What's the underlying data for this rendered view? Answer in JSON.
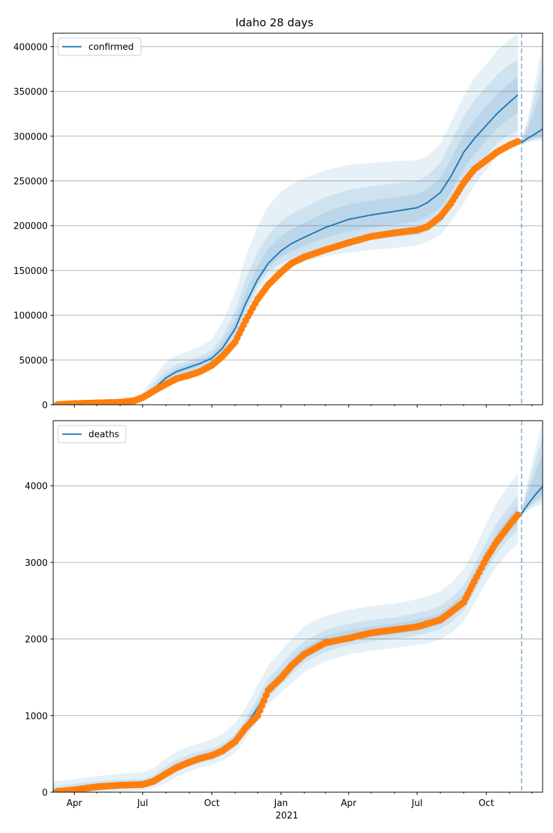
{
  "figure_title": "Idaho 28 days",
  "colors": {
    "model": "#1f77b4",
    "observed": "#ff7f0e",
    "grid": "#b0b0b0",
    "cutoff": "#1f77b4"
  },
  "x_axis": {
    "ticks": [
      {
        "date": "2020-04-01",
        "label": "Apr"
      },
      {
        "date": "2020-07-01",
        "label": "Jul"
      },
      {
        "date": "2020-10-01",
        "label": "Oct"
      },
      {
        "date": "2021-01-01",
        "label": "Jan"
      },
      {
        "date": "2021-04-01",
        "label": "Apr"
      },
      {
        "date": "2021-07-01",
        "label": "Jul"
      },
      {
        "date": "2021-10-01",
        "label": "Oct"
      }
    ],
    "year_label": "2021"
  },
  "chart_data": [
    {
      "type": "line",
      "legend": "confirmed",
      "legend_position": "upper-left",
      "grid": "horizontal",
      "xlim": [
        "2020-03-04",
        "2021-12-15"
      ],
      "ylim": [
        0,
        415000
      ],
      "yticks": [
        0,
        50000,
        100000,
        150000,
        200000,
        250000,
        300000,
        350000,
        400000
      ],
      "cutoff_date": "2021-11-17",
      "model": {
        "x": [
          "2020-03-04",
          "2020-04-01",
          "2020-05-01",
          "2020-06-01",
          "2020-06-20",
          "2020-07-01",
          "2020-07-15",
          "2020-08-01",
          "2020-08-15",
          "2020-09-01",
          "2020-09-15",
          "2020-10-01",
          "2020-10-15",
          "2020-11-01",
          "2020-11-15",
          "2020-12-01",
          "2020-12-15",
          "2021-01-01",
          "2021-01-15",
          "2021-02-01",
          "2021-03-01",
          "2021-04-01",
          "2021-05-01",
          "2021-06-01",
          "2021-07-01",
          "2021-07-15",
          "2021-08-01",
          "2021-08-15",
          "2021-09-01",
          "2021-09-15",
          "2021-10-01",
          "2021-10-15",
          "2021-11-01",
          "2021-11-12"
        ],
        "y": [
          500,
          1200,
          2000,
          2800,
          4500,
          8000,
          17000,
          30000,
          37000,
          42000,
          46000,
          52000,
          63000,
          85000,
          113000,
          140000,
          158000,
          172000,
          180000,
          187000,
          198000,
          207000,
          212000,
          216000,
          220000,
          226000,
          237000,
          255000,
          282000,
          297000,
          312000,
          325000,
          338000,
          346000
        ],
        "bands": [
          {
            "lo": [
              0,
              0,
              500,
              1500,
              3000,
              6000,
              13000,
              22000,
              28000,
              32000,
              35000,
              40000,
              50000,
              68000,
              95000,
              125000,
              142000,
              150000,
              155000,
              160000,
              166000,
              170000,
              173000,
              175000,
              178000,
              182000,
              190000,
              205000,
              225000,
              245000,
              262000,
              278000,
              290000,
              296000
            ],
            "hi": [
              2500,
              4000,
              5500,
              7000,
              9000,
              13000,
              30000,
              48000,
              55000,
              60000,
              65000,
              73000,
              92000,
              125000,
              165000,
              200000,
              222000,
              238000,
              246000,
              253000,
              262000,
              268000,
              270000,
              272000,
              273000,
              278000,
              292000,
              315000,
              345000,
              365000,
              380000,
              395000,
              408000,
              414000
            ]
          },
          {
            "lo": [
              0,
              300,
              1000,
              2000,
              3500,
              7000,
              15000,
              25000,
              31000,
              36000,
              39000,
              45000,
              56000,
              76000,
              103000,
              132000,
              149000,
              158000,
              163000,
              168000,
              175000,
              180000,
              184000,
              187000,
              190000,
              194000,
              203000,
              220000,
              245000,
              262000,
              278000,
              292000,
              302000,
              306000
            ],
            "hi": [
              1500,
              2500,
              3500,
              4500,
              6500,
              10000,
              23000,
              38000,
              45000,
              49000,
              54000,
              61000,
              76000,
              105000,
              140000,
              170000,
              190000,
              205000,
              213000,
              220000,
              232000,
              240000,
              244000,
              247000,
              250000,
              256000,
              270000,
              293000,
              322000,
              340000,
              355000,
              368000,
              380000,
              386000
            ]
          },
          {
            "lo": [
              100,
              700,
              1500,
              2400,
              4000,
              7500,
              16000,
              28000,
              34000,
              39000,
              42500,
              48500,
              59500,
              80500,
              108000,
              136000,
              153500,
              165000,
              171500,
              177500,
              186500,
              193500,
              198000,
              201500,
              205000,
              210000,
              220000,
              237500,
              263500,
              279500,
              295000,
              308500,
              320000,
              326000
            ],
            "hi": [
              900,
              1700,
              2600,
              3600,
              5500,
              9000,
              19500,
              33000,
              40500,
              45500,
              50000,
              56500,
              69000,
              95000,
              126000,
              155000,
              174000,
              188000,
              196000,
              203000,
              215000,
              223500,
              228000,
              231500,
              235000,
              241000,
              253500,
              274000,
              302000,
              318000,
              333500,
              346500,
              359000,
              366000
            ]
          }
        ]
      },
      "forecast": {
        "x": [
          "2021-11-17",
          "2021-11-25",
          "2021-12-05",
          "2021-12-15"
        ],
        "y": [
          293000,
          297500,
          302500,
          308000
        ],
        "lo": [
          290000,
          293000,
          294500,
          295000
        ],
        "hi": [
          298000,
          318000,
          360000,
          405000
        ]
      },
      "observed": {
        "x": [
          "2020-03-10",
          "2020-04-01",
          "2020-05-01",
          "2020-06-01",
          "2020-06-20",
          "2020-07-01",
          "2020-07-15",
          "2020-08-01",
          "2020-08-15",
          "2020-09-01",
          "2020-09-15",
          "2020-10-01",
          "2020-10-15",
          "2020-11-01",
          "2020-11-15",
          "2020-12-01",
          "2020-12-15",
          "2021-01-01",
          "2021-01-15",
          "2021-02-01",
          "2021-03-01",
          "2021-04-01",
          "2021-05-01",
          "2021-06-01",
          "2021-07-01",
          "2021-07-15",
          "2021-08-01",
          "2021-08-15",
          "2021-09-01",
          "2021-09-15",
          "2021-10-01",
          "2021-10-15",
          "2021-11-01",
          "2021-11-12"
        ],
        "y": [
          200,
          1200,
          2000,
          2800,
          4500,
          8000,
          15000,
          23000,
          29000,
          33000,
          37000,
          44000,
          54000,
          70000,
          94000,
          118000,
          134000,
          148000,
          158000,
          165000,
          173000,
          181000,
          188000,
          192000,
          195000,
          199000,
          210000,
          225000,
          248000,
          263000,
          273000,
          282000,
          290000,
          294000
        ]
      }
    },
    {
      "type": "line",
      "legend": "deaths",
      "legend_position": "upper-left",
      "grid": "horizontal",
      "xlim": [
        "2020-03-04",
        "2021-12-15"
      ],
      "ylim": [
        0,
        4850
      ],
      "yticks": [
        0,
        1000,
        2000,
        3000,
        4000
      ],
      "cutoff_date": "2021-11-17",
      "model": {
        "x": [
          "2020-03-04",
          "2020-04-01",
          "2020-05-01",
          "2020-06-01",
          "2020-07-01",
          "2020-07-15",
          "2020-08-01",
          "2020-08-15",
          "2020-09-01",
          "2020-09-15",
          "2020-10-01",
          "2020-10-15",
          "2020-11-01",
          "2020-11-15",
          "2020-12-01",
          "2020-12-15",
          "2021-01-01",
          "2021-01-15",
          "2021-02-01",
          "2021-03-01",
          "2021-04-01",
          "2021-05-01",
          "2021-06-01",
          "2021-07-01",
          "2021-07-15",
          "2021-08-01",
          "2021-08-15",
          "2021-09-01",
          "2021-09-15",
          "2021-10-01",
          "2021-10-15",
          "2021-11-01",
          "2021-11-12"
        ],
        "y": [
          20,
          40,
          80,
          100,
          110,
          150,
          250,
          330,
          400,
          440,
          480,
          540,
          660,
          860,
          1100,
          1330,
          1500,
          1650,
          1800,
          1950,
          2030,
          2080,
          2120,
          2170,
          2200,
          2250,
          2350,
          2500,
          2750,
          3050,
          3270,
          3490,
          3600
        ],
        "bands": [
          {
            "lo": [
              0,
              0,
              0,
              10,
              20,
              50,
              120,
              200,
              270,
              320,
              360,
              410,
              510,
              700,
              930,
              1150,
              1300,
              1430,
              1570,
              1710,
              1800,
              1850,
              1880,
              1920,
              1940,
              1990,
              2080,
              2230,
              2460,
              2740,
              2950,
              3140,
              3240
            ],
            "hi": [
              140,
              170,
              210,
              240,
              260,
              310,
              440,
              530,
              600,
              640,
              690,
              760,
              900,
              1100,
              1400,
              1650,
              1840,
              2000,
              2170,
              2300,
              2380,
              2430,
              2460,
              2520,
              2560,
              2620,
              2730,
              2900,
              3170,
              3500,
              3780,
              4020,
              4160
            ]
          },
          {
            "lo": [
              0,
              10,
              40,
              60,
              70,
              100,
              190,
              270,
              340,
              380,
              420,
              480,
              590,
              790,
              1010,
              1240,
              1400,
              1540,
              1690,
              1830,
              1920,
              1970,
              2000,
              2050,
              2080,
              2130,
              2220,
              2370,
              2610,
              2900,
              3120,
              3320,
              3420
            ],
            "hi": [
              70,
              110,
              140,
              160,
              170,
              220,
              340,
              420,
              490,
              530,
              570,
              630,
              760,
              960,
              1230,
              1480,
              1660,
              1820,
              1970,
              2120,
              2200,
              2250,
              2280,
              2340,
              2370,
              2430,
              2530,
              2690,
              2950,
              3260,
              3510,
              3740,
              3870
            ]
          },
          {
            "lo": [
              10,
              25,
              60,
              80,
              90,
              125,
              220,
              300,
              370,
              410,
              450,
              510,
              625,
              825,
              1055,
              1285,
              1450,
              1595,
              1745,
              1890,
              1975,
              2025,
              2060,
              2110,
              2140,
              2190,
              2285,
              2435,
              2680,
              2975,
              3195,
              3405,
              3510
            ],
            "hi": [
              40,
              75,
              110,
              130,
              140,
              185,
              295,
              375,
              445,
              485,
              525,
              585,
              710,
              910,
              1165,
              1405,
              1580,
              1735,
              1885,
              2035,
              2115,
              2165,
              2200,
              2255,
              2285,
              2340,
              2440,
              2595,
              2850,
              3155,
              3380,
              3615,
              3735
            ]
          }
        ]
      },
      "forecast": {
        "x": [
          "2021-11-17",
          "2021-11-25",
          "2021-12-05",
          "2021-12-15"
        ],
        "y": [
          3640,
          3750,
          3880,
          3990
        ],
        "lo": [
          3600,
          3670,
          3730,
          3760
        ],
        "hi": [
          3700,
          4050,
          4450,
          4850
        ]
      },
      "observed": {
        "x": [
          "2020-03-10",
          "2020-04-01",
          "2020-05-01",
          "2020-06-01",
          "2020-07-01",
          "2020-07-15",
          "2020-08-01",
          "2020-08-15",
          "2020-09-01",
          "2020-09-15",
          "2020-10-01",
          "2020-10-15",
          "2020-11-01",
          "2020-11-15",
          "2020-12-01",
          "2020-12-15",
          "2021-01-01",
          "2021-01-15",
          "2021-02-01",
          "2021-03-01",
          "2021-04-01",
          "2021-05-01",
          "2021-06-01",
          "2021-07-01",
          "2021-07-15",
          "2021-08-01",
          "2021-08-15",
          "2021-09-01",
          "2021-09-15",
          "2021-10-01",
          "2021-10-15",
          "2021-11-01",
          "2021-11-12"
        ],
        "y": [
          10,
          30,
          70,
          90,
          100,
          140,
          240,
          320,
          390,
          440,
          480,
          540,
          660,
          840,
          1000,
          1330,
          1490,
          1650,
          1800,
          1950,
          2010,
          2080,
          2120,
          2160,
          2200,
          2250,
          2350,
          2480,
          2750,
          3050,
          3270,
          3490,
          3620
        ]
      }
    }
  ]
}
